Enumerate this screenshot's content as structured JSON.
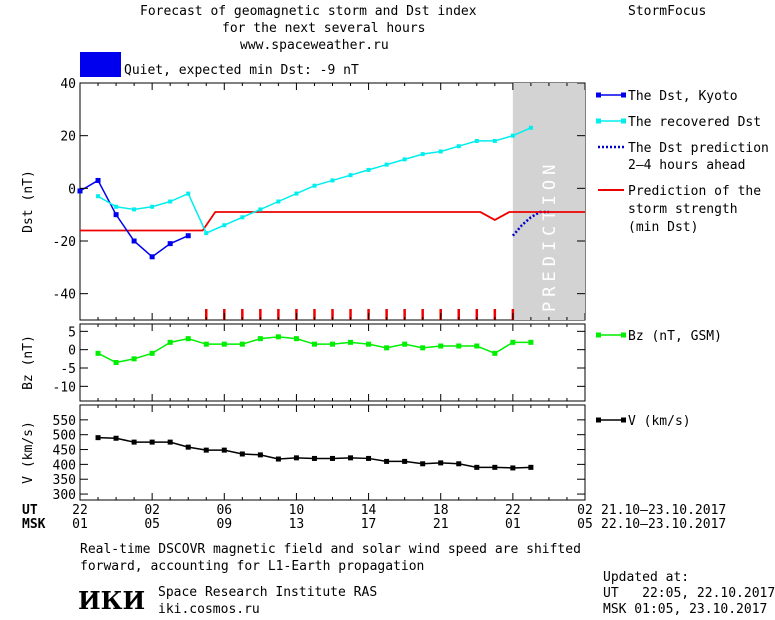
{
  "header": {
    "title_line1": "Forecast of geomagnetic storm and Dst index",
    "title_line2": "for the next several hours",
    "title_line3": "www.spaceweather.ru",
    "brand": "StormFocus",
    "status_text": "Quiet, expected min Dst: -9 nT",
    "status_color": "#0000ee"
  },
  "prediction_label": "PREDICTION",
  "time_axis": {
    "ut_label": "UT",
    "msk_label": "MSK",
    "ut_ticks": [
      "22",
      "02",
      "06",
      "10",
      "14",
      "18",
      "22",
      "02"
    ],
    "msk_ticks": [
      "01",
      "05",
      "09",
      "13",
      "17",
      "21",
      "01",
      "05"
    ],
    "ut_range": "21.10–23.10.2017",
    "msk_range": "22.10–23.10.2017"
  },
  "footer": {
    "note_line1": "Real-time DSCOVR magnetic field and solar wind speed are shifted",
    "note_line2": "forward, accounting for L1-Earth propagation",
    "institute_logo": "ИКИ",
    "institute": "Space Research Institute RAS",
    "institute_url": "iki.cosmos.ru",
    "updated_label": "Updated at:",
    "updated_ut": "UT   22:05, 22.10.2017",
    "updated_msk": "MSK 01:05, 23.10.2017"
  },
  "chart_data": [
    {
      "type": "line",
      "ylabel": "Dst (nT)",
      "ylim": [
        -50,
        40
      ],
      "yticks": [
        40,
        20,
        0,
        -20,
        -40
      ],
      "xlim": [
        0,
        28
      ],
      "prediction_window": [
        24,
        28
      ],
      "series": [
        {
          "name": "The Dst, Kyoto",
          "color": "#0000ee",
          "marker": "square",
          "x": [
            0,
            1,
            2,
            3,
            4,
            5,
            6,
            7
          ],
          "y": [
            -1,
            3,
            -10,
            -20,
            -26,
            -21,
            -18,
            null
          ]
        },
        {
          "name": "The recovered Dst",
          "color": "#00eeee",
          "marker": "square",
          "x": [
            1,
            2,
            3,
            4,
            5,
            6,
            7,
            8,
            9,
            10,
            11,
            12,
            13,
            14,
            15,
            16,
            17,
            18,
            19,
            20,
            21,
            22,
            23,
            24,
            25
          ],
          "y": [
            -3,
            -7,
            -8,
            -7,
            -5,
            -2,
            -17,
            -14,
            -11,
            -8,
            -5,
            -2,
            1,
            3,
            5,
            7,
            9,
            11,
            13,
            14,
            16,
            18,
            18,
            20,
            23
          ]
        },
        {
          "name": "The Dst prediction 2-4 hours ahead",
          "color": "#0000cc",
          "style": "dotted",
          "x": [
            24,
            24.5,
            25,
            25.5,
            26
          ],
          "y": [
            -18,
            -14,
            -11,
            -9,
            -9
          ]
        },
        {
          "name": "Prediction of the storm strength (min Dst)",
          "color": "#ee0000",
          "style": "step",
          "x": [
            0,
            6.8,
            7.5,
            22.2,
            23,
            23.8,
            28
          ],
          "y": [
            -16,
            -16,
            -9,
            -9,
            -12,
            -9,
            -9
          ]
        }
      ],
      "prediction_ticks_x": [
        7,
        8,
        9,
        10,
        11,
        12,
        13,
        14,
        15,
        16,
        17,
        18,
        19,
        20,
        21,
        22,
        23,
        24
      ]
    },
    {
      "type": "line",
      "ylabel": "Bz (nT)",
      "ylim": [
        -14,
        7
      ],
      "yticks": [
        5,
        0,
        -5,
        -10
      ],
      "xlim": [
        0,
        28
      ],
      "series": [
        {
          "name": "Bz (nT, GSM)",
          "color": "#00ee00",
          "marker": "square",
          "x": [
            1,
            2,
            3,
            4,
            5,
            6,
            7,
            8,
            9,
            10,
            11,
            12,
            13,
            14,
            15,
            16,
            17,
            18,
            19,
            20,
            21,
            22,
            23,
            24,
            25
          ],
          "y": [
            -1,
            -3.5,
            -2.5,
            -1,
            2,
            3,
            1.5,
            1.5,
            1.5,
            3,
            3.5,
            3,
            1.5,
            1.5,
            2,
            1.5,
            0.5,
            1.5,
            0.5,
            1,
            1,
            1,
            -1,
            2,
            2
          ]
        }
      ]
    },
    {
      "type": "line",
      "ylabel": "V (km/s)",
      "ylim": [
        280,
        600
      ],
      "yticks": [
        550,
        500,
        450,
        400,
        350,
        300
      ],
      "ytick_labels": [
        "550",
        "500",
        "450",
        "400",
        "350",
        "300"
      ],
      "xlim": [
        0,
        28
      ],
      "series": [
        {
          "name": "V (km/s)",
          "color": "#000000",
          "marker": "square",
          "x": [
            1,
            2,
            3,
            4,
            5,
            6,
            7,
            8,
            9,
            10,
            11,
            12,
            13,
            14,
            15,
            16,
            17,
            18,
            19,
            20,
            21,
            22,
            23,
            24,
            25
          ],
          "y": [
            490,
            488,
            475,
            475,
            475,
            458,
            448,
            448,
            435,
            432,
            418,
            422,
            420,
            420,
            422,
            420,
            410,
            410,
            402,
            405,
            402,
            390,
            390,
            388,
            390
          ]
        }
      ]
    }
  ],
  "legend": {
    "dst_kyoto": "The Dst, Kyoto",
    "recovered": "The recovered Dst",
    "pred1": "The Dst prediction",
    "pred2": "2–4 hours ahead",
    "storm1": "Prediction of the",
    "storm2": "storm strength",
    "storm3": "(min Dst)",
    "bz": "Bz (nT, GSM)",
    "v": "V (km/s)"
  }
}
